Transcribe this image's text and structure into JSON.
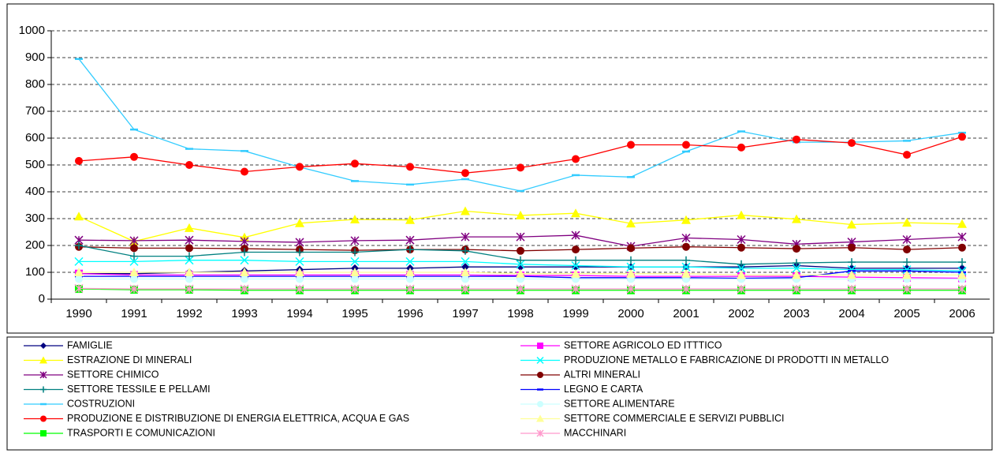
{
  "chart_data": {
    "type": "line",
    "categories": [
      "1990",
      "1991",
      "1992",
      "1993",
      "1994",
      "1995",
      "1996",
      "1997",
      "1998",
      "1999",
      "2000",
      "2001",
      "2002",
      "2003",
      "2004",
      "2005",
      "2006"
    ],
    "ylim": [
      0,
      1000
    ],
    "yticks": [
      0,
      100,
      200,
      300,
      400,
      500,
      600,
      700,
      800,
      900,
      1000
    ],
    "grid": true,
    "series": [
      {
        "name": "FAMIGLIE",
        "color": "#000080",
        "marker": "diamond",
        "values": [
          95,
          95,
          100,
          105,
          110,
          115,
          115,
          120,
          120,
          120,
          120,
          120,
          120,
          125,
          115,
          115,
          115
        ]
      },
      {
        "name": "SETTORE AGRICOLO ED ITTTICO",
        "color": "#FF00FF",
        "marker": "square",
        "values": [
          95,
          90,
          90,
          90,
          90,
          90,
          90,
          90,
          88,
          88,
          85,
          85,
          85,
          85,
          82,
          80,
          78
        ]
      },
      {
        "name": "ESTRAZIONE DI MINERALI",
        "color": "#FFFF00",
        "marker": "triangle",
        "values": [
          308,
          215,
          265,
          230,
          283,
          297,
          295,
          328,
          312,
          320,
          282,
          295,
          313,
          298,
          278,
          285,
          280
        ]
      },
      {
        "name": "PRODUZIONE  METALLO E FABRICAZIONE DI PRODOTTI IN METALLO",
        "color": "#00FFFF",
        "marker": "x",
        "values": [
          140,
          140,
          145,
          145,
          140,
          140,
          140,
          140,
          130,
          125,
          120,
          120,
          115,
          115,
          110,
          110,
          105
        ]
      },
      {
        "name": "SETTORE CHIMICO",
        "color": "#800080",
        "marker": "star",
        "values": [
          220,
          218,
          220,
          215,
          212,
          218,
          220,
          232,
          232,
          238,
          197,
          228,
          222,
          205,
          213,
          222,
          232
        ]
      },
      {
        "name": "ALTRI MINERALI",
        "color": "#800000",
        "marker": "circle",
        "values": [
          195,
          190,
          190,
          188,
          185,
          182,
          185,
          185,
          180,
          185,
          190,
          195,
          192,
          188,
          192,
          185,
          192
        ]
      },
      {
        "name": "SETTORE TESSILE E PELLAMI",
        "color": "#008080",
        "marker": "plus",
        "values": [
          200,
          160,
          160,
          175,
          175,
          175,
          185,
          180,
          145,
          145,
          145,
          145,
          130,
          135,
          138,
          138,
          138
        ]
      },
      {
        "name": "LEGNO E CARTA",
        "color": "#0000FF",
        "marker": "dash",
        "values": [
          85,
          85,
          85,
          85,
          85,
          85,
          85,
          85,
          85,
          80,
          80,
          80,
          78,
          80,
          105,
          105,
          100
        ]
      },
      {
        "name": "COSTRUZIONI",
        "color": "#33CCFF",
        "marker": "dash",
        "values": [
          895,
          632,
          560,
          552,
          492,
          440,
          427,
          447,
          403,
          462,
          455,
          550,
          625,
          585,
          585,
          590,
          620
        ]
      },
      {
        "name": "SETTORE ALIMENTARE",
        "color": "#CCFFFF",
        "marker": "circle",
        "values": [
          75,
          75,
          75,
          75,
          75,
          75,
          75,
          75,
          75,
          75,
          75,
          75,
          75,
          75,
          75,
          75,
          75
        ]
      },
      {
        "name": "PRODUZIONE E DISTRIBUZIONE DI ENERGIA ELETTRICA, ACQUA E GAS",
        "color": "#FF0000",
        "marker": "circle",
        "values": [
          515,
          530,
          500,
          475,
          493,
          505,
          493,
          470,
          490,
          522,
          575,
          575,
          565,
          595,
          582,
          538,
          605
        ]
      },
      {
        "name": "SETTORE COMMERCIALE E SERVIZI PUBBLICI",
        "color": "#FFFF99",
        "marker": "triangle",
        "values": [
          100,
          100,
          100,
          100,
          100,
          100,
          100,
          100,
          95,
          95,
          95,
          95,
          90,
          90,
          90,
          90,
          90
        ]
      },
      {
        "name": "TRASPORTI E COMUNICAZIONI",
        "color": "#00FF00",
        "marker": "square",
        "values": [
          38,
          35,
          35,
          33,
          33,
          33,
          33,
          33,
          33,
          33,
          33,
          33,
          33,
          33,
          33,
          33,
          33
        ]
      },
      {
        "name": "MACCHINARI",
        "color": "#FF99CC",
        "marker": "star",
        "values": [
          40,
          38,
          38,
          38,
          38,
          38,
          38,
          38,
          38,
          38,
          38,
          38,
          38,
          38,
          38,
          38,
          38
        ]
      }
    ]
  }
}
